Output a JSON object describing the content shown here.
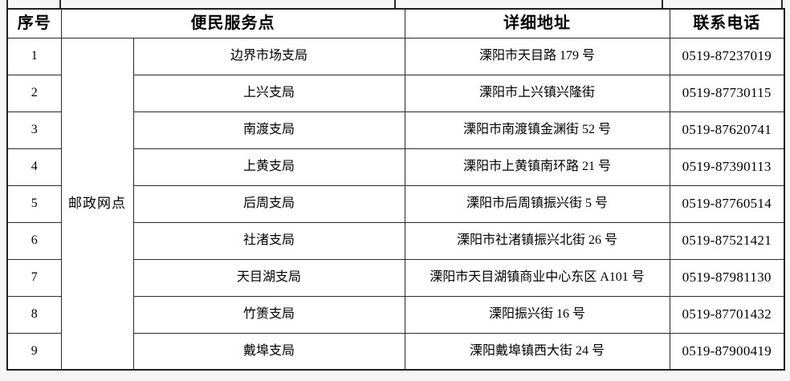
{
  "page": {
    "background_color": "#f6f6f6",
    "table_background_color": "#ffffff",
    "border_color": "#2a2a2a",
    "text_color": "#000000"
  },
  "table": {
    "headers": {
      "seq": "序号",
      "service_point": "便民服务点",
      "address": "详细地址",
      "phone": "联系电话"
    },
    "group_label": "邮政网点",
    "rows": [
      {
        "seq": "1",
        "branch": "边界市场支局",
        "address": "溧阳市天目路 179 号",
        "phone": "0519-87237019"
      },
      {
        "seq": "2",
        "branch": "上兴支局",
        "address": "溧阳市上兴镇兴隆街",
        "phone": "0519-87730115"
      },
      {
        "seq": "3",
        "branch": "南渡支局",
        "address": "溧阳市南渡镇金渊街 52 号",
        "phone": "0519-87620741"
      },
      {
        "seq": "4",
        "branch": "上黄支局",
        "address": "溧阳市上黄镇南环路 21 号",
        "phone": "0519-87390113"
      },
      {
        "seq": "5",
        "branch": "后周支局",
        "address": "溧阳市后周镇振兴街 5 号",
        "phone": "0519-87760514"
      },
      {
        "seq": "6",
        "branch": "社渚支局",
        "address": "溧阳市社渚镇振兴北街 26 号",
        "phone": "0519-87521421"
      },
      {
        "seq": "7",
        "branch": "天目湖支局",
        "address": "溧阳市天目湖镇商业中心东区 A101 号",
        "phone": "0519-87981130"
      },
      {
        "seq": "8",
        "branch": "竹箦支局",
        "address": "溧阳振兴街 16 号",
        "phone": "0519-87701432"
      },
      {
        "seq": "9",
        "branch": "戴埠支局",
        "address": "溧阳戴埠镇西大街 24 号",
        "phone": "0519-87900419"
      }
    ]
  }
}
